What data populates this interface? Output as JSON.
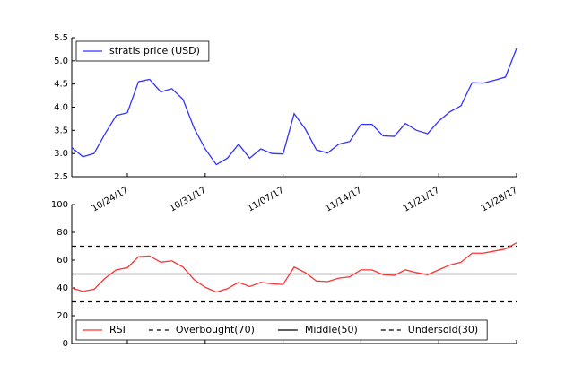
{
  "chart_data": [
    {
      "type": "line",
      "x": [
        "2017-10-19",
        "2017-10-20",
        "2017-10-21",
        "2017-10-22",
        "2017-10-23",
        "2017-10-24",
        "2017-10-25",
        "2017-10-26",
        "2017-10-27",
        "2017-10-28",
        "2017-10-29",
        "2017-10-30",
        "2017-10-31",
        "2017-11-01",
        "2017-11-02",
        "2017-11-03",
        "2017-11-04",
        "2017-11-05",
        "2017-11-06",
        "2017-11-07",
        "2017-11-08",
        "2017-11-09",
        "2017-11-10",
        "2017-11-11",
        "2017-11-12",
        "2017-11-13",
        "2017-11-14",
        "2017-11-15",
        "2017-11-16",
        "2017-11-17",
        "2017-11-18",
        "2017-11-19",
        "2017-11-20",
        "2017-11-21",
        "2017-11-22",
        "2017-11-23",
        "2017-11-24",
        "2017-11-25",
        "2017-11-26",
        "2017-11-27",
        "2017-11-28"
      ],
      "series": [
        {
          "name": "stratis price (USD)",
          "color": "#3333ff",
          "values": [
            3.13,
            2.93,
            3.0,
            3.43,
            3.82,
            3.88,
            4.55,
            4.6,
            4.33,
            4.4,
            4.17,
            3.55,
            3.1,
            2.76,
            2.9,
            3.2,
            2.9,
            3.1,
            3.0,
            2.99,
            3.86,
            3.53,
            3.08,
            3.01,
            3.2,
            3.26,
            3.63,
            3.63,
            3.38,
            3.37,
            3.65,
            3.5,
            3.43,
            3.7,
            3.9,
            4.03,
            4.53,
            4.52,
            4.58,
            4.65,
            5.27
          ]
        }
      ],
      "xlim": [
        "2017-10-19",
        "2017-11-28"
      ],
      "xticks": [
        {
          "value": "2017-10-24",
          "label": "10/24/17"
        },
        {
          "value": "2017-10-31",
          "label": "10/31/17"
        },
        {
          "value": "2017-11-07",
          "label": "11/07/17"
        },
        {
          "value": "2017-11-14",
          "label": "11/14/17"
        },
        {
          "value": "2017-11-21",
          "label": "11/21/17"
        },
        {
          "value": "2017-11-28",
          "label": "11/28/17"
        }
      ],
      "ylim": [
        2.5,
        5.5
      ],
      "yticks": [
        2.5,
        {
          "value": 3,
          "label": "3.0"
        },
        3.5,
        {
          "value": 4,
          "label": "4.0"
        },
        4.5,
        {
          "value": 5,
          "label": "5.0"
        },
        5.5
      ],
      "legend": "upper left"
    },
    {
      "type": "line",
      "x": [
        "2017-10-19",
        "2017-10-20",
        "2017-10-21",
        "2017-10-22",
        "2017-10-23",
        "2017-10-24",
        "2017-10-25",
        "2017-10-26",
        "2017-10-27",
        "2017-10-28",
        "2017-10-29",
        "2017-10-30",
        "2017-10-31",
        "2017-11-01",
        "2017-11-02",
        "2017-11-03",
        "2017-11-04",
        "2017-11-05",
        "2017-11-06",
        "2017-11-07",
        "2017-11-08",
        "2017-11-09",
        "2017-11-10",
        "2017-11-11",
        "2017-11-12",
        "2017-11-13",
        "2017-11-14",
        "2017-11-15",
        "2017-11-16",
        "2017-11-17",
        "2017-11-18",
        "2017-11-19",
        "2017-11-20",
        "2017-11-21",
        "2017-11-22",
        "2017-11-23",
        "2017-11-24",
        "2017-11-25",
        "2017-11-26",
        "2017-11-27",
        "2017-11-28"
      ],
      "series": [
        {
          "name": "RSI",
          "color": "#ff3333",
          "values": [
            40,
            37.5,
            39,
            47,
            53,
            54.5,
            62.5,
            63,
            58.5,
            59.5,
            55,
            46,
            40.5,
            37,
            39.5,
            44,
            41,
            44,
            43,
            42.5,
            55,
            51,
            45,
            44.5,
            47,
            48,
            53,
            53,
            49.5,
            49,
            53,
            51,
            49.5,
            53,
            56.5,
            58.5,
            65,
            65,
            66.5,
            68,
            72.5
          ]
        }
      ],
      "hlines": [
        {
          "name": "Overbought(70)",
          "value": 70,
          "style": "dashed",
          "color": "#000000"
        },
        {
          "name": "Middle(50)",
          "value": 50,
          "style": "solid",
          "color": "#000000"
        },
        {
          "name": "Undersold(30)",
          "value": 30,
          "style": "dashed",
          "color": "#000000"
        }
      ],
      "xlim": [
        "2017-10-19",
        "2017-11-28"
      ],
      "xticks": [
        "2017-10-24",
        "2017-10-31",
        "2017-11-07",
        "2017-11-14",
        "2017-11-21",
        "2017-11-28"
      ],
      "ylim": [
        0,
        100
      ],
      "yticks": [
        0,
        20,
        40,
        60,
        80,
        100
      ],
      "legend": "lower left"
    }
  ]
}
